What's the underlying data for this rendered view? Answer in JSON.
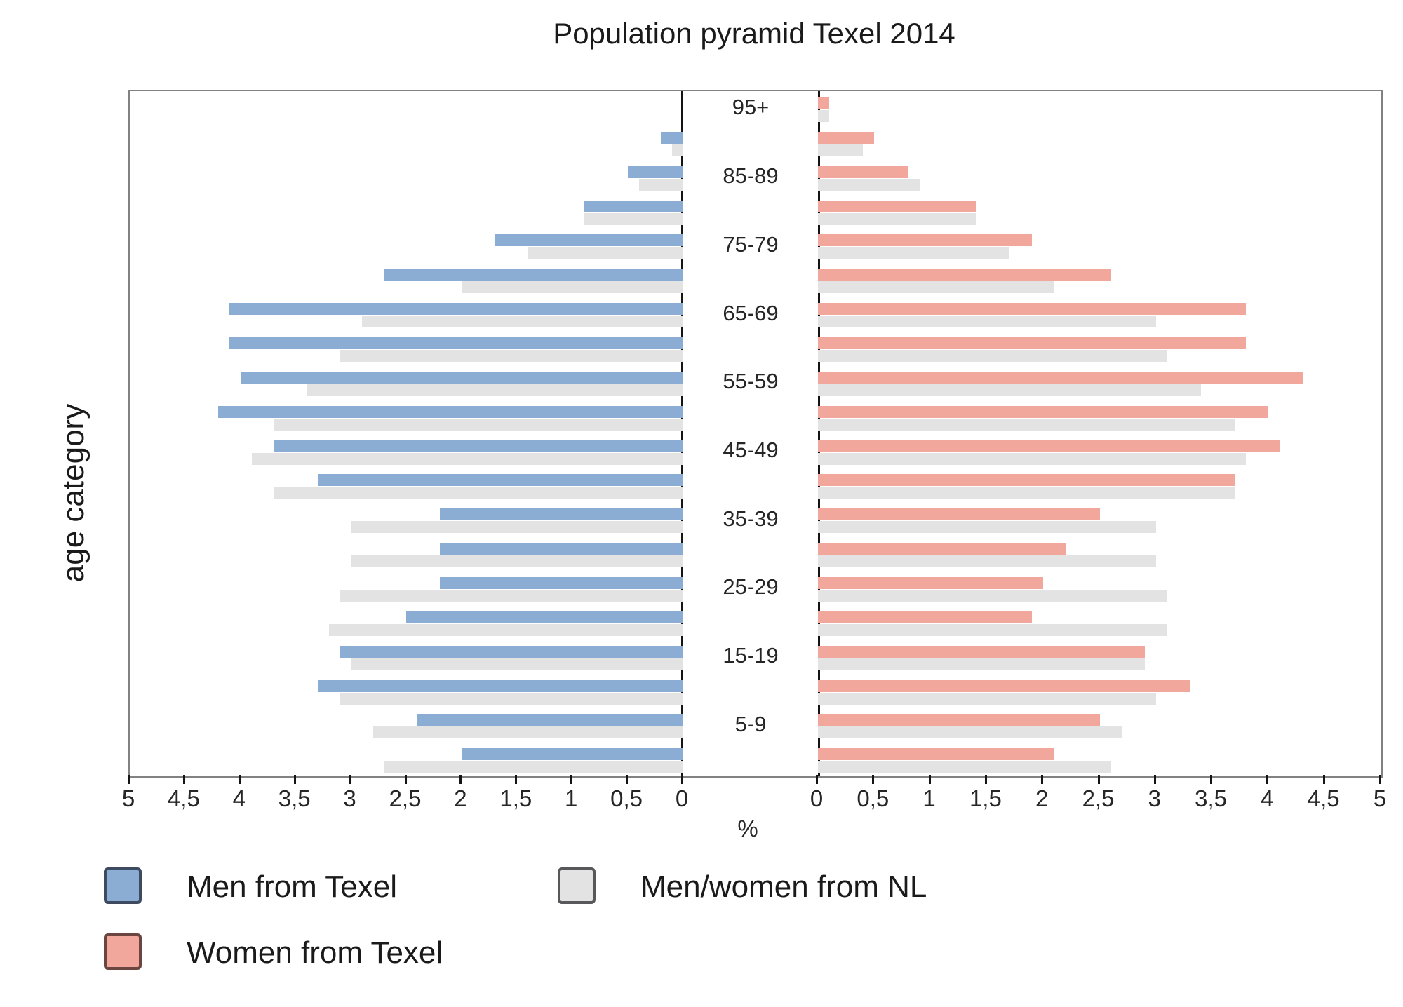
{
  "title": "Population pyramid Texel 2014",
  "axes": {
    "y_label": "age category",
    "x_label": "%",
    "left_tick_labels": [
      "5",
      "4,5",
      "4",
      "3,5",
      "3",
      "2,5",
      "2",
      "1,5",
      "1",
      "0,5",
      "0"
    ],
    "right_tick_labels": [
      "0",
      "0,5",
      "1",
      "1,5",
      "2",
      "2,5",
      "3",
      "3,5",
      "4",
      "4,5",
      "5"
    ],
    "visible_age_tick_labels": [
      "95+",
      "85-89",
      "75-79",
      "65-69",
      "55-59",
      "45-49",
      "35-39",
      "25-29",
      "15-19",
      "5-9"
    ]
  },
  "legend": {
    "men_texel": {
      "label": "Men from Texel",
      "color": "#8BADD3",
      "border": "#3E4A5F"
    },
    "women_texel": {
      "label": "Women from Texel",
      "color": "#F2A79C",
      "border": "#6B4540"
    },
    "nl": {
      "label": "Men/women from NL",
      "color": "#E3E3E3",
      "border": "#58585A"
    }
  },
  "chart_data": {
    "type": "bar",
    "subtype": "population-pyramid",
    "title": "Population pyramid Texel 2014",
    "unit": "%",
    "xlim_each_side": [
      0,
      5
    ],
    "x_tick_step": 0.5,
    "grid": false,
    "categories_top_to_bottom": [
      "95+",
      "90-94",
      "85-89",
      "80-84",
      "75-79",
      "70-74",
      "65-69",
      "60-64",
      "55-59",
      "50-54",
      "45-49",
      "40-44",
      "35-39",
      "30-34",
      "25-29",
      "20-24",
      "15-19",
      "10-14",
      "5-9",
      "0-4"
    ],
    "series": [
      {
        "name": "Men from Texel",
        "side": "left",
        "color": "#8BADD3",
        "values": [
          0.0,
          0.2,
          0.5,
          0.9,
          1.7,
          2.7,
          4.1,
          4.1,
          4.0,
          4.2,
          3.7,
          3.3,
          2.2,
          2.2,
          2.2,
          2.5,
          3.1,
          3.3,
          2.4,
          2.0
        ]
      },
      {
        "name": "Men from NL",
        "side": "left",
        "color": "#E3E3E3",
        "values": [
          0.0,
          0.1,
          0.4,
          0.9,
          1.4,
          2.0,
          2.9,
          3.1,
          3.4,
          3.7,
          3.9,
          3.7,
          3.0,
          3.0,
          3.1,
          3.2,
          3.0,
          3.1,
          2.8,
          2.7
        ]
      },
      {
        "name": "Women from Texel",
        "side": "right",
        "color": "#F2A79C",
        "values": [
          0.1,
          0.5,
          0.8,
          1.4,
          1.9,
          2.6,
          3.8,
          3.8,
          4.3,
          4.0,
          4.1,
          3.7,
          2.5,
          2.2,
          2.0,
          1.9,
          2.9,
          3.3,
          2.5,
          2.1
        ]
      },
      {
        "name": "Women from NL",
        "side": "right",
        "color": "#E3E3E3",
        "values": [
          0.1,
          0.4,
          0.9,
          1.4,
          1.7,
          2.1,
          3.0,
          3.1,
          3.4,
          3.7,
          3.8,
          3.7,
          3.0,
          3.0,
          3.1,
          3.1,
          2.9,
          3.0,
          2.7,
          2.6
        ]
      }
    ]
  }
}
